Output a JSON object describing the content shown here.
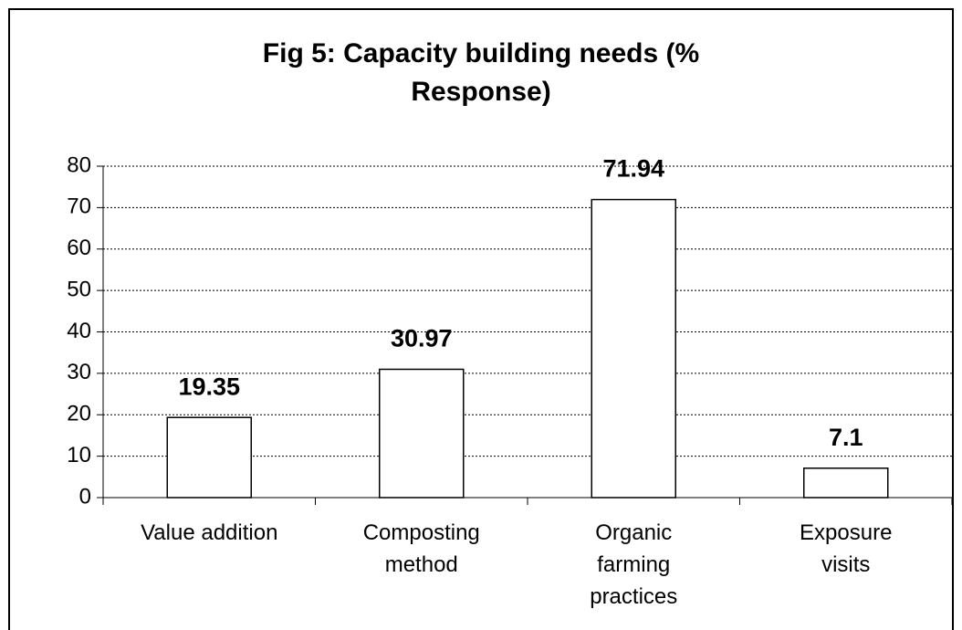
{
  "chart_data": {
    "type": "bar",
    "title": "Fig 5: Capacity building needs (% Response)",
    "categories": [
      "Value addition",
      "Composting method",
      "Organic farming practices",
      "Exposure visits"
    ],
    "values": [
      19.35,
      30.97,
      71.94,
      7.1
    ],
    "color": "#ffffff",
    "ylim": [
      0,
      80
    ],
    "yticks": [
      0,
      10,
      20,
      30,
      40,
      50,
      60,
      70,
      80
    ],
    "grid": true
  }
}
